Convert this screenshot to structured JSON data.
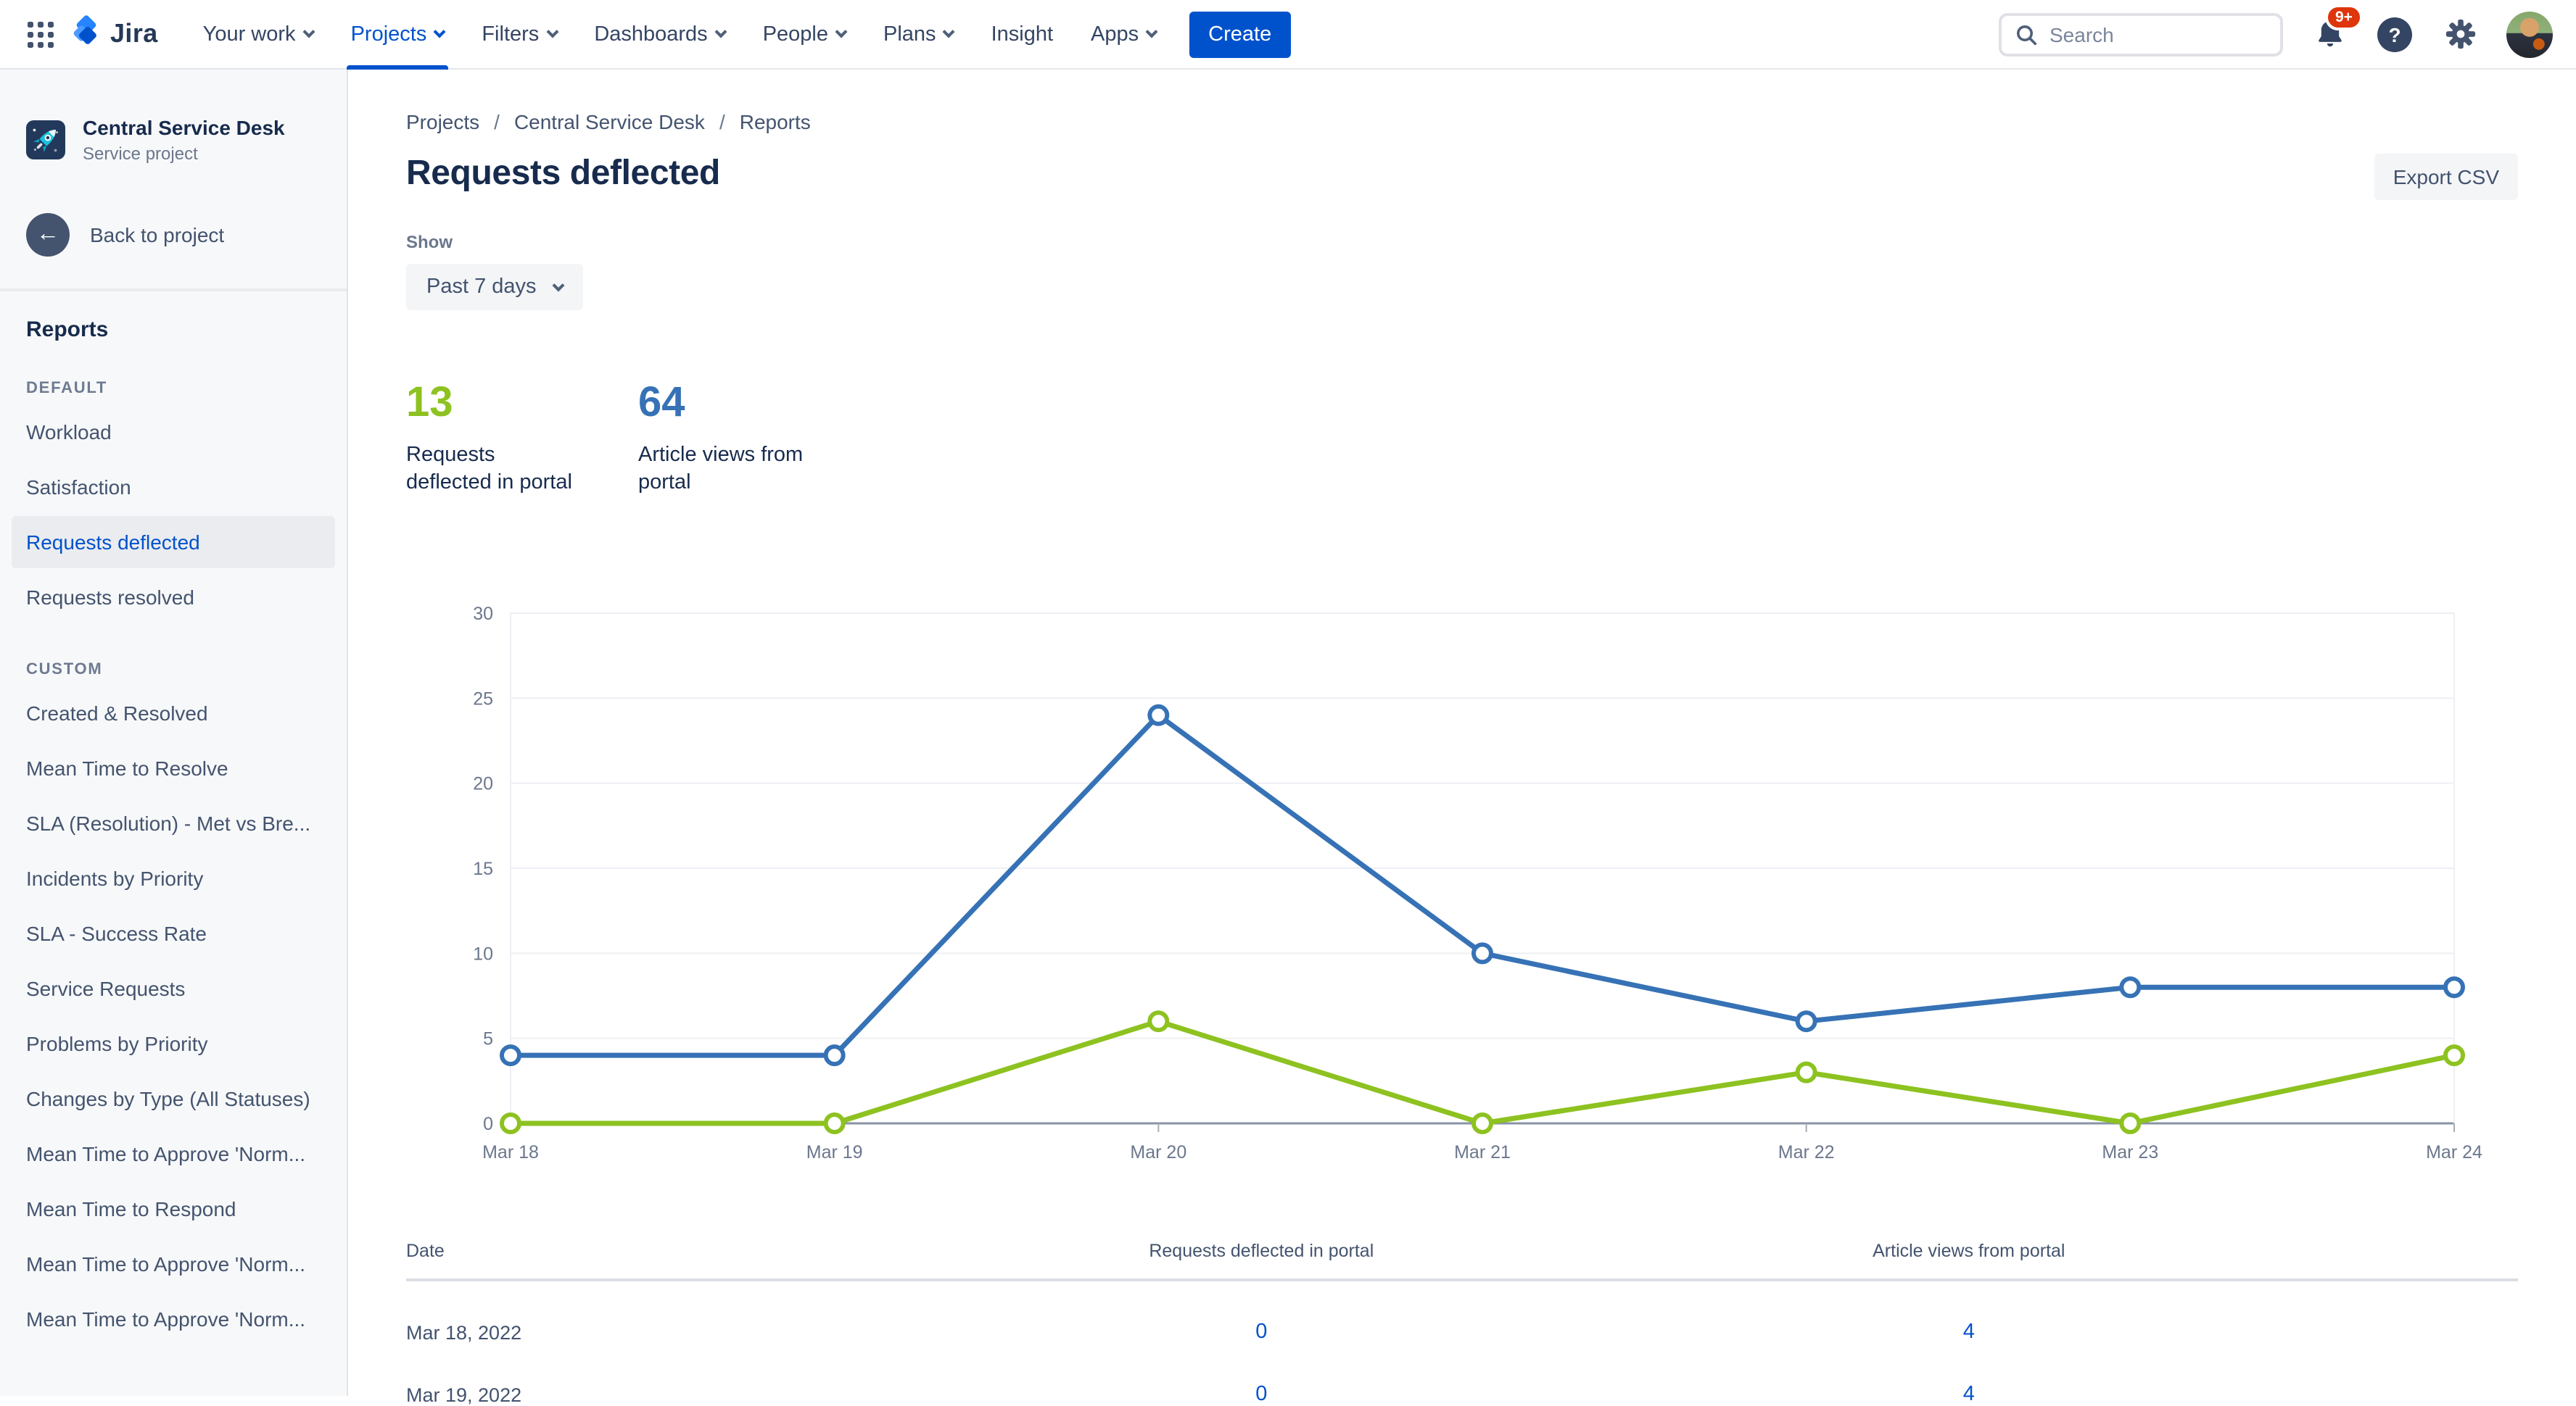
{
  "topnav": {
    "logo_text": "Jira",
    "items": [
      {
        "label": "Your work",
        "chevron": true,
        "active": false
      },
      {
        "label": "Projects",
        "chevron": true,
        "active": true
      },
      {
        "label": "Filters",
        "chevron": true,
        "active": false
      },
      {
        "label": "Dashboards",
        "chevron": true,
        "active": false
      },
      {
        "label": "People",
        "chevron": true,
        "active": false
      },
      {
        "label": "Plans",
        "chevron": true,
        "active": false
      },
      {
        "label": "Insight",
        "chevron": false,
        "active": false
      },
      {
        "label": "Apps",
        "chevron": true,
        "active": false
      }
    ],
    "create_label": "Create",
    "search_placeholder": "Search",
    "notification_badge": "9+"
  },
  "sidebar": {
    "project_name": "Central Service Desk",
    "project_type": "Service project",
    "back_label": "Back to project",
    "heading": "Reports",
    "sections": [
      {
        "label": "DEFAULT",
        "items": [
          {
            "label": "Workload",
            "active": false
          },
          {
            "label": "Satisfaction",
            "active": false
          },
          {
            "label": "Requests deflected",
            "active": true
          },
          {
            "label": "Requests resolved",
            "active": false
          }
        ]
      },
      {
        "label": "CUSTOM",
        "items": [
          {
            "label": "Created & Resolved",
            "active": false
          },
          {
            "label": "Mean Time to Resolve",
            "active": false
          },
          {
            "label": "SLA (Resolution) - Met vs Bre...",
            "active": false
          },
          {
            "label": "Incidents by Priority",
            "active": false
          },
          {
            "label": "SLA - Success Rate",
            "active": false
          },
          {
            "label": "Service Requests",
            "active": false
          },
          {
            "label": "Problems by Priority",
            "active": false
          },
          {
            "label": "Changes by Type (All Statuses)",
            "active": false
          },
          {
            "label": "Mean Time to Approve 'Norm...",
            "active": false
          },
          {
            "label": "Mean Time to Respond",
            "active": false
          },
          {
            "label": "Mean Time to Approve 'Norm...",
            "active": false
          },
          {
            "label": "Mean Time to Approve 'Norm...",
            "active": false
          }
        ]
      }
    ]
  },
  "main": {
    "breadcrumb": [
      "Projects",
      "Central Service Desk",
      "Reports"
    ],
    "title": "Requests deflected",
    "export_label": "Export CSV",
    "show_label": "Show",
    "period": "Past 7 days",
    "stats": [
      {
        "value": "13",
        "label": "Requests deflected in portal",
        "color": "#8DC220"
      },
      {
        "value": "64",
        "label": "Article views from portal",
        "color": "#3672B5"
      }
    ]
  },
  "chart_data": {
    "type": "line",
    "x": [
      "Mar 18",
      "Mar 19",
      "Mar 20",
      "Mar 21",
      "Mar 22",
      "Mar 23",
      "Mar 24"
    ],
    "series": [
      {
        "name": "Article views from portal",
        "color": "#3672B5",
        "values": [
          4,
          4,
          24,
          10,
          6,
          8,
          8
        ]
      },
      {
        "name": "Requests deflected in portal",
        "color": "#8DC220",
        "values": [
          0,
          0,
          6,
          0,
          3,
          0,
          4
        ]
      }
    ],
    "ylim": [
      0,
      30
    ],
    "yticks": [
      0,
      5,
      10,
      15,
      20,
      25,
      30
    ],
    "grid": "horizontal",
    "legend": "none",
    "title": "",
    "xlabel": "",
    "ylabel": ""
  },
  "table": {
    "headers": [
      "Date",
      "Requests deflected in portal",
      "Article views from portal"
    ],
    "rows": [
      {
        "date": "Mar 18, 2022",
        "deflected": "0",
        "views": "4"
      },
      {
        "date": "Mar 19, 2022",
        "deflected": "0",
        "views": "4"
      }
    ]
  },
  "colors": {
    "accent": "#0052CC",
    "badge": "#DE350B",
    "link": "#0052CC",
    "axis": "#8993A4",
    "gridline": "#EDEFF4",
    "tick_label": "#6B778C"
  }
}
